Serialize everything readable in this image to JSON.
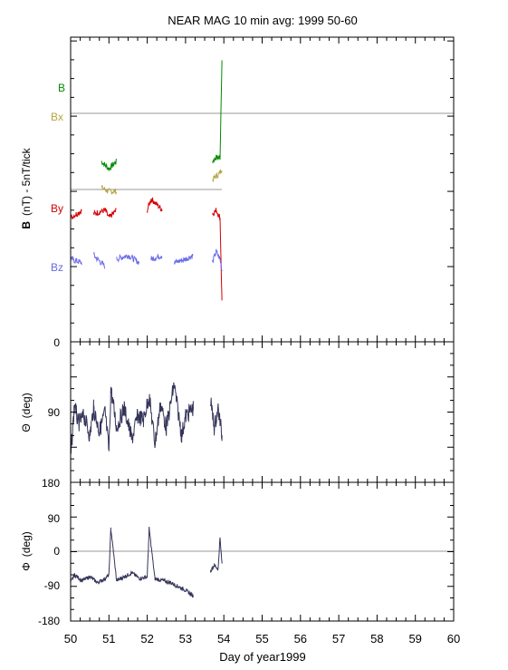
{
  "title": "NEAR MAG 10 min avg: 1999 50-60",
  "chart_data": [
    {
      "type": "line",
      "panel": "field",
      "ylabel_bold": "B",
      "ylabel_rest": "(nT) - 5nT/tick",
      "ytick_label": "0",
      "baselines": [
        "Bx",
        "By"
      ],
      "series": [
        {
          "name": "B",
          "color": "#008a00",
          "x": [
            50.0,
            50.4,
            50.8,
            51.0,
            51.2,
            51.6,
            52.0,
            52.4,
            52.8,
            53.2,
            53.7,
            53.8,
            53.9,
            53.95
          ],
          "offset": [
            7,
            8,
            9,
            7,
            9,
            8,
            7,
            8,
            7,
            5,
            9,
            10,
            10,
            36
          ]
        },
        {
          "name": "Bx",
          "color": "#b3a642",
          "x": [
            50.0,
            50.4,
            50.8,
            51.0,
            51.2,
            51.6,
            52.0,
            52.4,
            52.8,
            53.2,
            53.7,
            53.8,
            53.9,
            53.95
          ],
          "offset": [
            0,
            2,
            2,
            1,
            1,
            0,
            1,
            0,
            1,
            -2,
            4,
            5,
            6,
            7
          ]
        },
        {
          "name": "By",
          "color": "#d40000",
          "x": [
            50.0,
            50.3,
            50.6,
            50.9,
            51.0,
            51.2,
            51.6,
            52.0,
            52.1,
            52.4,
            52.8,
            53.2,
            53.7,
            53.8,
            53.9,
            53.95
          ],
          "offset": [
            -6,
            -4,
            -5,
            -4,
            -6,
            -4,
            -5,
            -4,
            -1,
            -4,
            -5,
            -4,
            -5,
            -4,
            -6,
            -28
          ]
        },
        {
          "name": "Bz",
          "color": "#6a6ae8",
          "x": [
            50.0,
            50.3,
            50.6,
            50.9,
            51.2,
            51.5,
            51.8,
            52.1,
            52.4,
            52.7,
            53.0,
            53.2,
            53.7,
            53.8,
            53.9,
            53.95
          ],
          "offset": [
            -17,
            -18,
            -16,
            -19,
            -17,
            -16,
            -18,
            -17,
            -16,
            -18,
            -17,
            -16,
            -18,
            -15,
            -17,
            -20
          ]
        }
      ],
      "ylim": [
        -39,
        42
      ]
    },
    {
      "type": "line",
      "panel": "theta",
      "ylabel_symbol": "Θ",
      "ylabel_rest": "(deg)",
      "yticks": [
        90,
        180
      ],
      "series_color": "#34345a",
      "segments": [
        {
          "x": [
            50.0,
            50.1,
            50.2,
            50.35,
            50.5,
            50.6,
            50.75,
            50.9,
            51.0,
            51.05,
            51.2,
            51.4,
            51.6,
            51.75,
            51.9,
            52.05,
            52.2,
            52.35,
            52.5,
            52.7,
            52.9,
            53.0,
            53.2
          ],
          "y": [
            150,
            80,
            105,
            95,
            120,
            85,
            115,
            90,
            140,
            60,
            110,
            85,
            125,
            95,
            100,
            70,
            130,
            80,
            110,
            55,
            120,
            95,
            85
          ]
        },
        {
          "x": [
            53.65,
            53.75,
            53.85,
            53.95
          ],
          "y": [
            75,
            110,
            85,
            120
          ]
        }
      ],
      "ylim": [
        0,
        180
      ]
    },
    {
      "type": "line",
      "panel": "phi",
      "ylabel_symbol": "Φ",
      "ylabel_rest": "(deg)",
      "yticks": [
        180,
        90,
        0,
        -90,
        -180
      ],
      "series_color": "#34345a",
      "segments": [
        {
          "x": [
            50.0,
            50.1,
            50.3,
            50.5,
            50.7,
            50.9,
            51.0,
            51.05,
            51.2,
            51.4,
            51.6,
            51.8,
            52.0,
            52.05,
            52.2,
            52.4,
            52.6,
            52.8,
            53.0,
            53.2
          ],
          "y": [
            -80,
            -60,
            -75,
            -65,
            -80,
            -70,
            -60,
            60,
            -75,
            -65,
            -55,
            -70,
            -65,
            60,
            -70,
            -75,
            -80,
            -90,
            -100,
            -115
          ]
        },
        {
          "x": [
            53.65,
            53.75,
            53.85,
            53.9,
            53.95
          ],
          "y": [
            -50,
            -35,
            -45,
            35,
            -30
          ]
        }
      ],
      "ylim": [
        -180,
        180
      ]
    }
  ],
  "xaxis": {
    "label": "Day of year1999",
    "xlim": [
      50,
      60
    ],
    "ticks": [
      "50",
      "51",
      "52",
      "53",
      "54",
      "55",
      "56",
      "57",
      "58",
      "59",
      "60"
    ]
  }
}
